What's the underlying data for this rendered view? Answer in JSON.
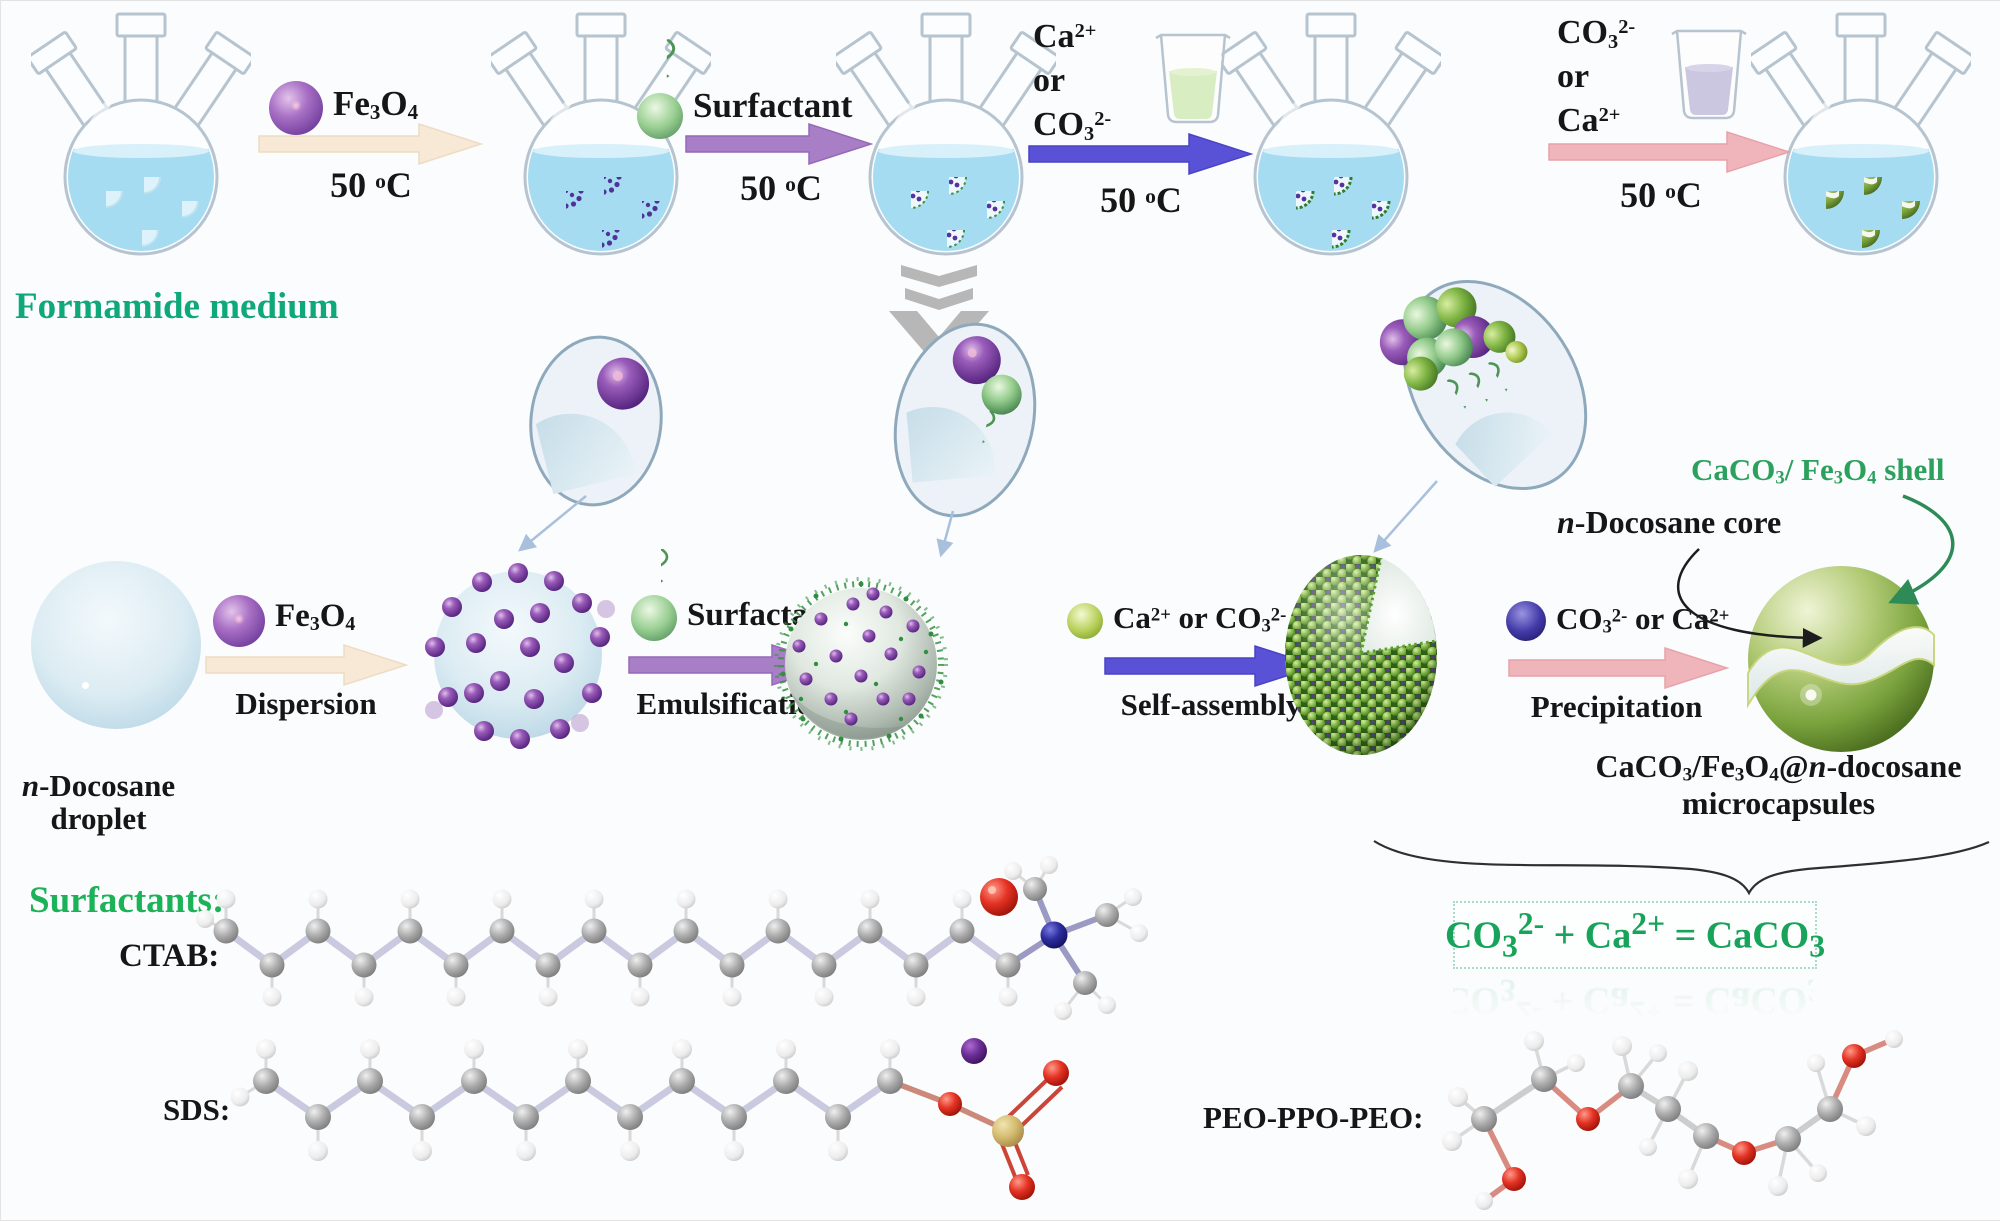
{
  "colors": {
    "formamide_green": "#0fa87a",
    "surfactants_green": "#1cb257",
    "shell_green": "#2ba15d",
    "equation_green": "#18a35b",
    "arrow_cream": "#f7e9d6",
    "arrow_purple": "#a87fc6",
    "arrow_blue": "#5952d6",
    "arrow_pink": "#f0b5bb",
    "fe3o4_purple": "#6a3fa0",
    "surfactant_green_sphere": "#8cc88a",
    "flask_liquid_blue": "#a6dcf2"
  },
  "top_row": {
    "steps": [
      {
        "reagent": "Fe_3_O_4_",
        "temp": "50 ^o^C"
      },
      {
        "reagent": "Surfactant",
        "temp": "50 ^o^C"
      },
      {
        "reagent_lines": [
          "Ca^2+^",
          "or",
          "CO_3_^2-^"
        ],
        "temp": "50 ^o^C"
      },
      {
        "reagent_lines": [
          "CO_3_^2-^",
          "or",
          "Ca^2+^"
        ],
        "temp": "50 ^o^C"
      }
    ]
  },
  "medium_label": "Formamide medium",
  "middle_row": {
    "droplet_label_line1": "*n*-Docosane",
    "droplet_label_line2": "droplet",
    "steps": [
      {
        "reagent": "Fe_3_O_4_",
        "process": "Dispersion"
      },
      {
        "reagent": "Surfactant",
        "process": "Emulsification"
      },
      {
        "reagent": "Ca^2+^ or CO_3_^2-^",
        "process": "Self-assembly"
      },
      {
        "reagent": "CO_3_^2-^ or Ca^2+^",
        "process": "Precipitation"
      }
    ],
    "shell_label": "CaCO_3_/ Fe_3_O_4_ shell",
    "core_label": "*n*-Docosane core",
    "product_line1": "CaCO_3_/Fe_3_O_4_@*n*-docosane",
    "product_line2": "microcapsules"
  },
  "bottom": {
    "surfactants_heading": "Surfactants:",
    "molecules": [
      {
        "label": "CTAB:"
      },
      {
        "label": "SDS:"
      },
      {
        "label": "PEO-PPO-PEO:"
      }
    ],
    "equation": "CO_3_^2-^ + Ca^2+^ = CaCO_3_"
  }
}
